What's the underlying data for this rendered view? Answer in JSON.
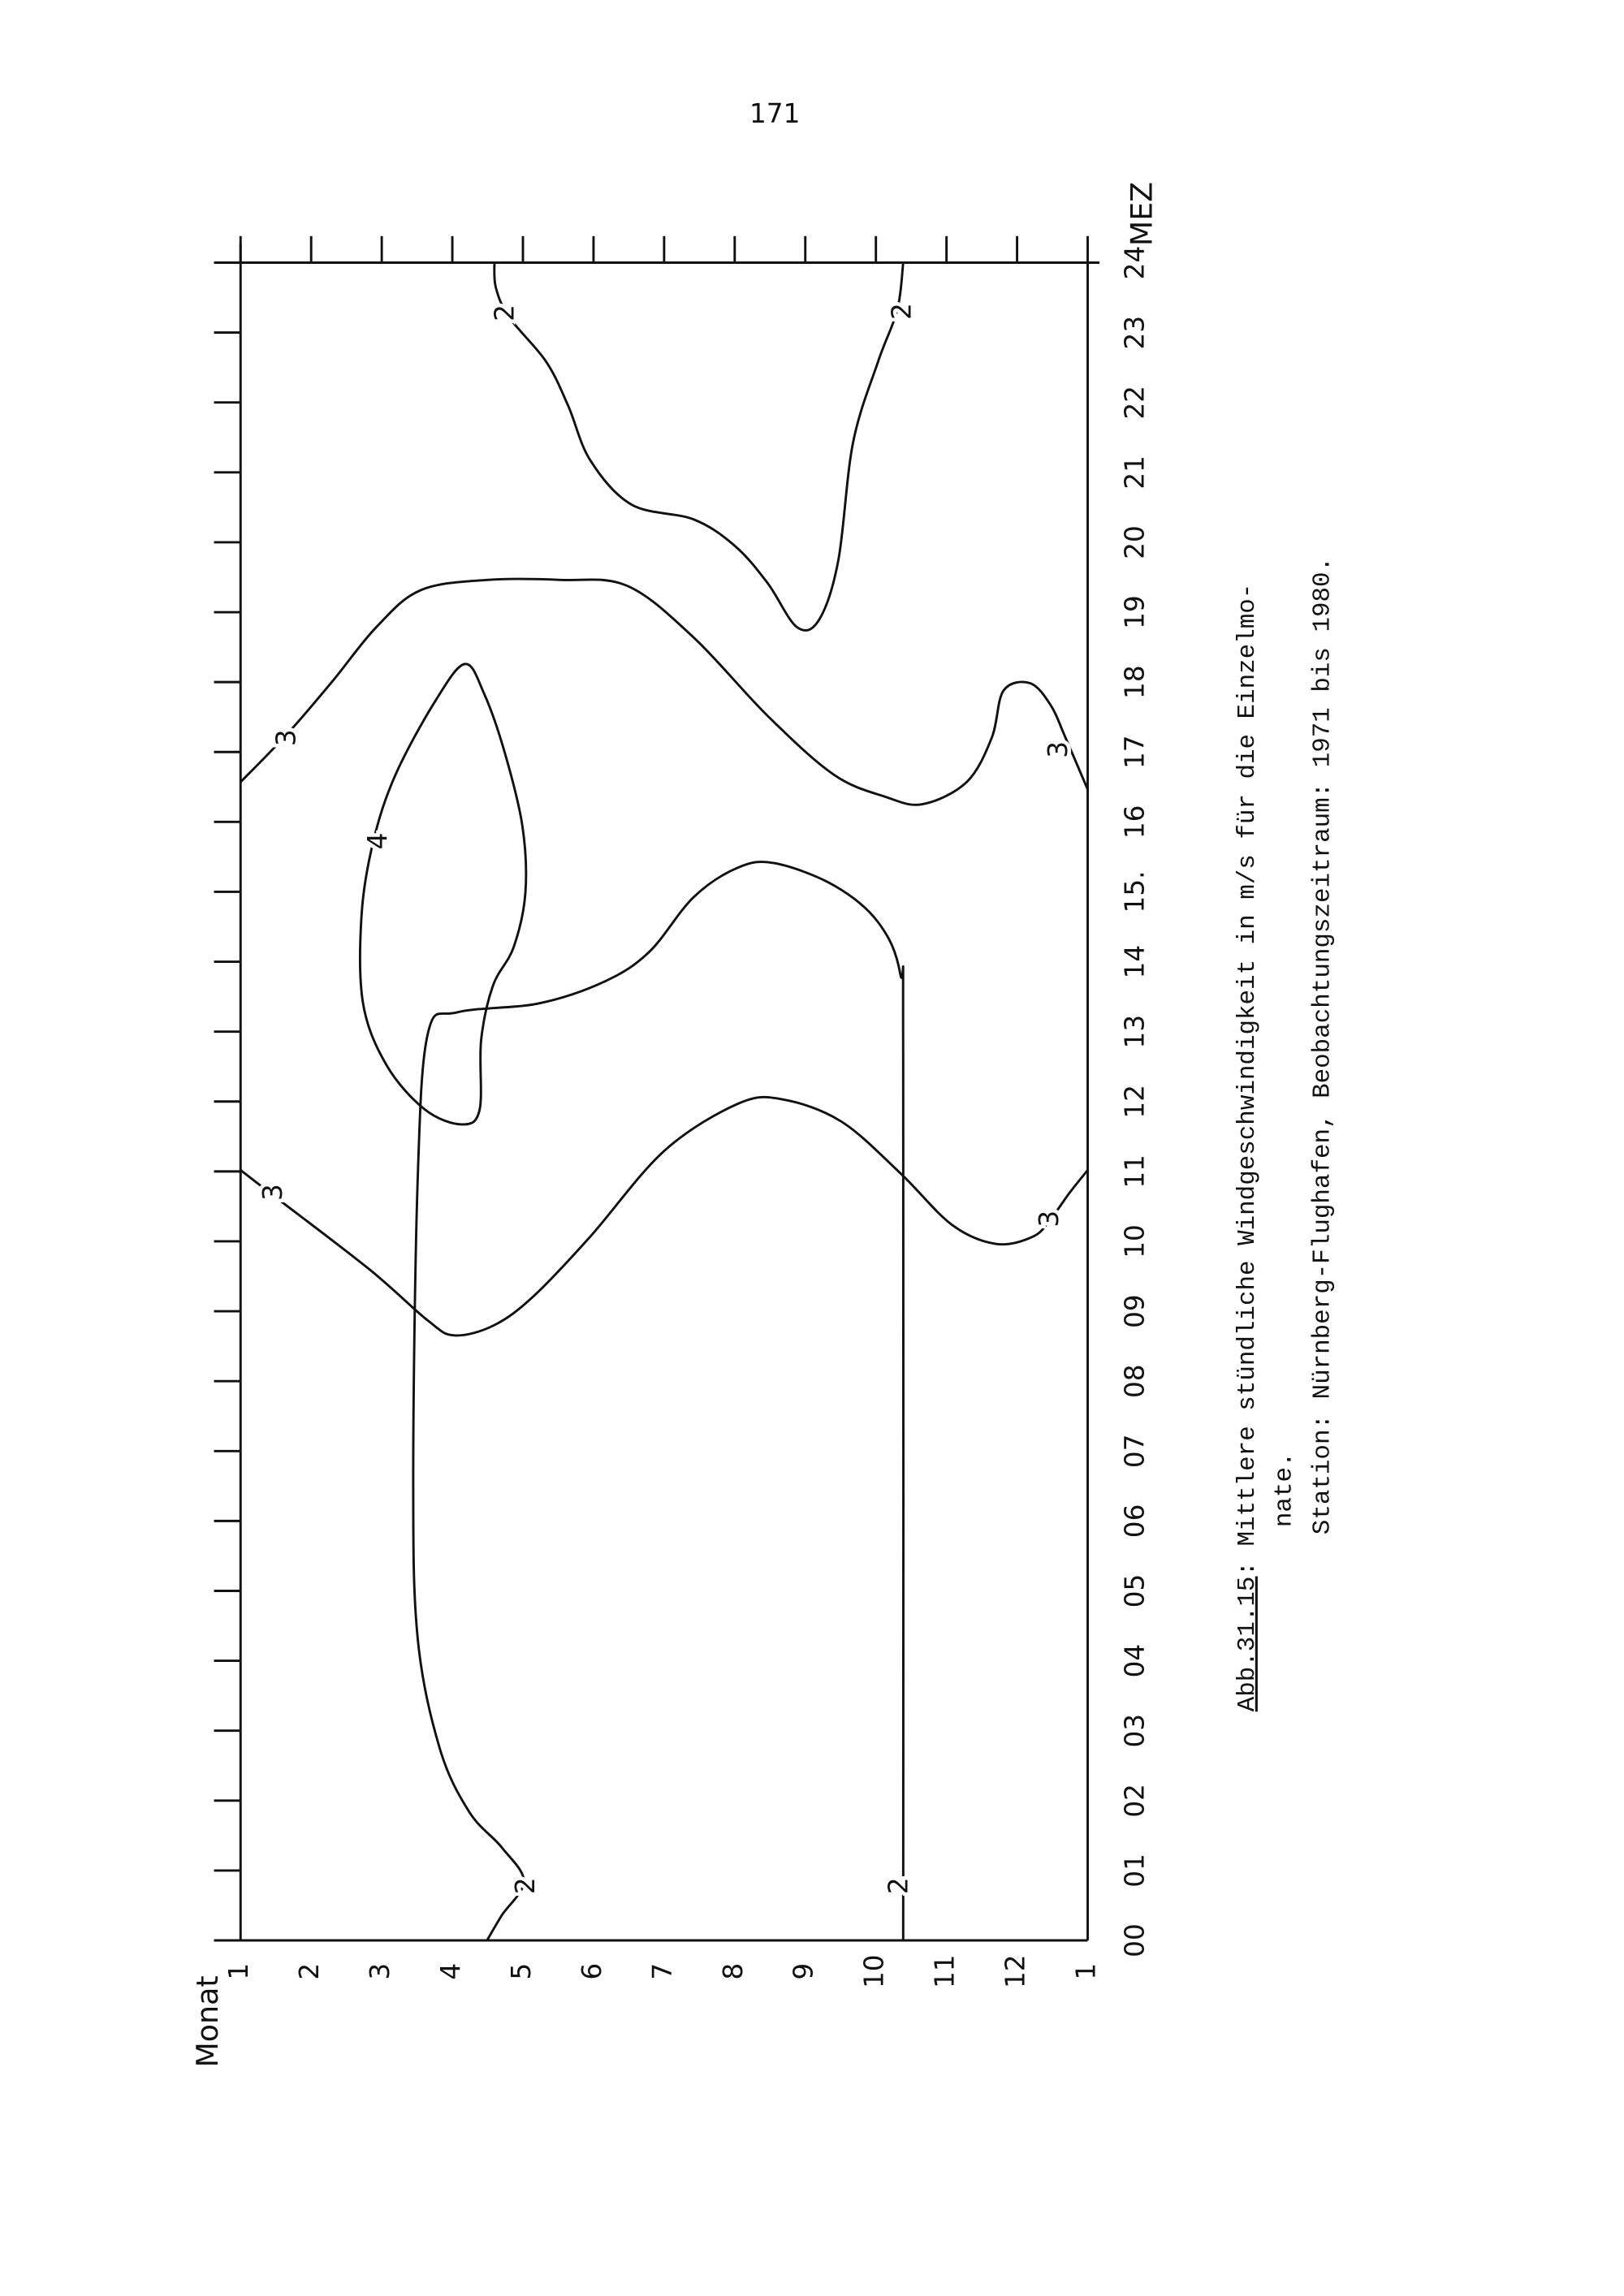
{
  "page_number": "171",
  "figure": {
    "y_axis_label": "Monat",
    "x_axis_label": "MEZ",
    "hour_labels": [
      "00",
      "01",
      "02",
      "03",
      "04",
      "05",
      "06",
      "07",
      "08",
      "09",
      "10",
      "11",
      "12",
      "13",
      "14",
      "15.",
      "16",
      "17",
      "18",
      "19",
      "20",
      "21",
      "22",
      "23",
      "24"
    ],
    "month_labels": [
      "1",
      "2",
      "3",
      "4",
      "5",
      "6",
      "7",
      "8",
      "9",
      "10",
      "11",
      "12",
      "1"
    ],
    "contour_labels": [
      "2",
      "2",
      "2",
      "2",
      "3",
      "3",
      "3",
      "3",
      "4"
    ]
  },
  "caption": {
    "label": "Abb.31.15",
    "line1": ": Mittlere stündliche Windgeschwindigkeit in m/s für die Einzelmo-",
    "line2": "nate.",
    "line3": "Station: Nürnberg-Flughafen, Beobachtungszeitraum: 1971 bis 1980."
  }
}
